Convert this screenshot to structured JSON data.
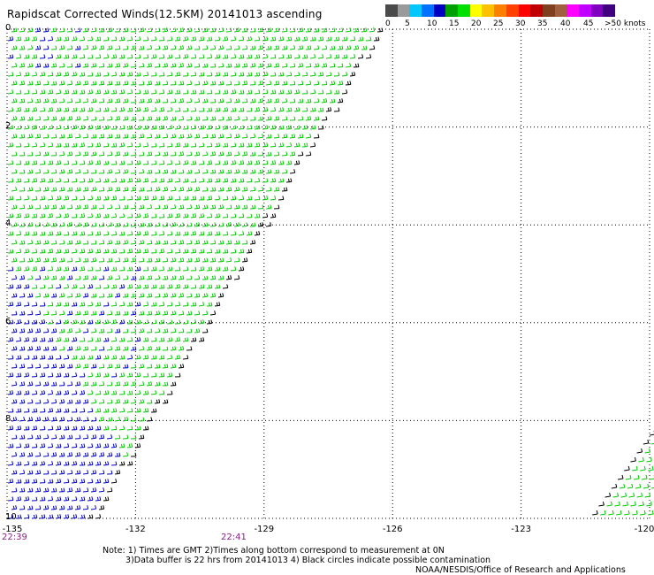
{
  "title": "Rapidscat Corrected Winds(12.5KM) 20141013 ascending",
  "colorbar": {
    "labels": [
      "0",
      "5",
      "10",
      "15",
      "20",
      "25",
      "30",
      "35",
      "40",
      "45",
      ">50 knots"
    ],
    "colors": [
      "#4a4a4a",
      "#9a9a9a",
      "#00c8ff",
      "#0070ff",
      "#0000c0",
      "#00a000",
      "#00e000",
      "#ffff00",
      "#ffc000",
      "#ff8000",
      "#ff4000",
      "#ff0000",
      "#c00000",
      "#804020",
      "#a06040",
      "#ff00ff",
      "#c000ff",
      "#8000c0",
      "#400080"
    ]
  },
  "axes": {
    "x_ticks": [
      "-135",
      "-132",
      "-129",
      "-126",
      "-123",
      "-120"
    ],
    "x_tick_values": [
      -135,
      -132,
      -129,
      -126,
      -123,
      -120
    ],
    "y_ticks": [
      "0",
      "2",
      "4",
      "6",
      "8",
      "10"
    ],
    "y_tick_values": [
      0,
      2,
      4,
      6,
      8,
      10
    ],
    "grid": "dotted"
  },
  "times": {
    "left": "22:39",
    "mid": "22:41"
  },
  "notes": {
    "line1": "Note: 1) Times are GMT 2)Times along bottom correspond to measurement at 0N",
    "line2": "3)Data buffer is 22 hrs from 20141013 4) Black circles indicate possible contamination",
    "line3": "NOAA/NESDIS/Office of Research and Applications"
  },
  "wind_colors": {
    "green": "#00cc00",
    "blue": "#0000cc",
    "black": "#000000"
  }
}
